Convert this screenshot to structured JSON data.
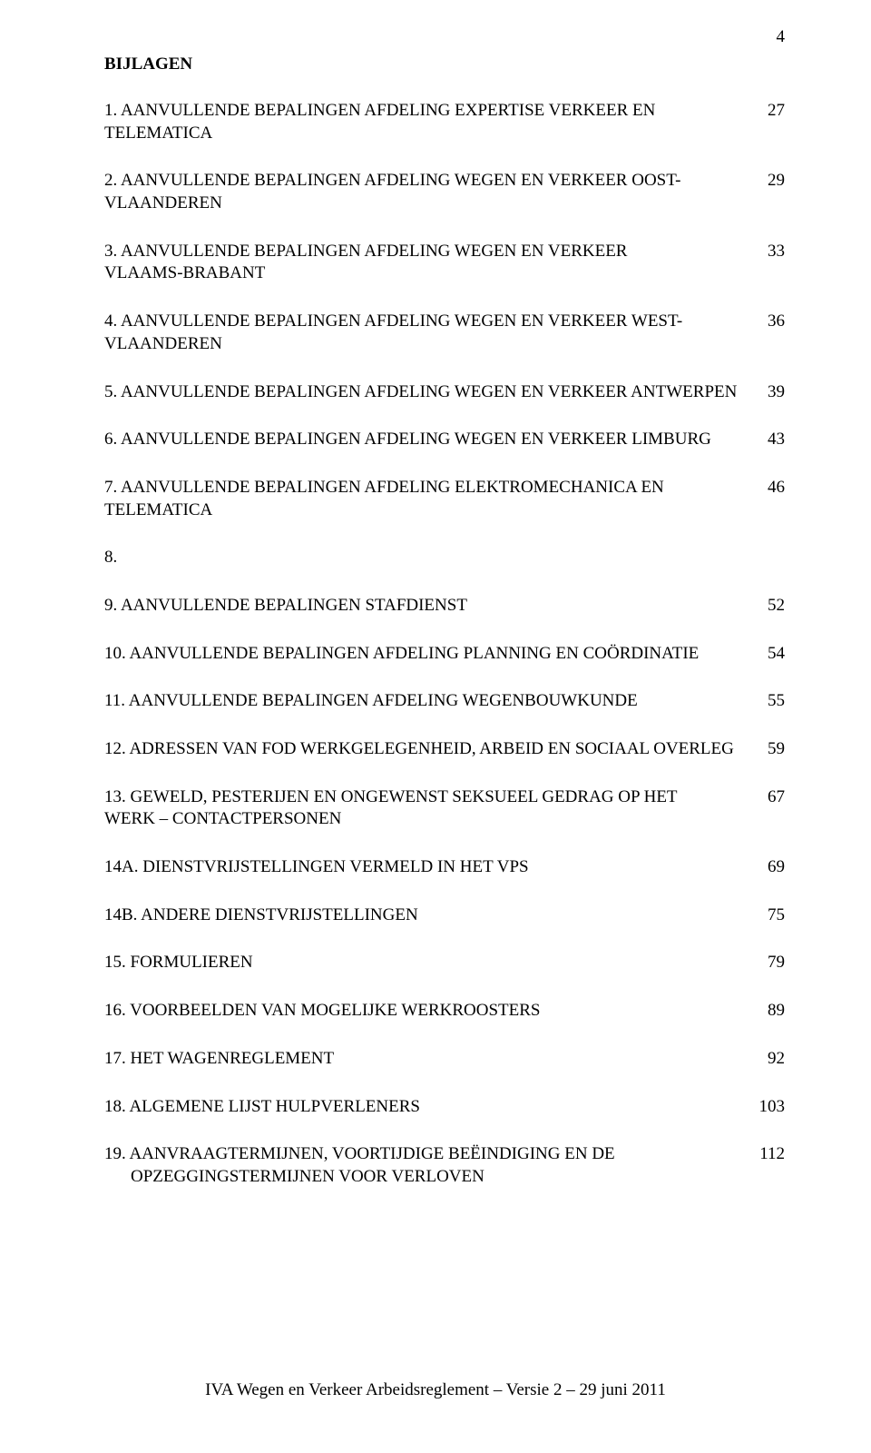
{
  "page_number_top": "4",
  "heading": "BIJLAGEN",
  "entries": [
    {
      "label": "1. AANVULLENDE BEPALINGEN AFDELING EXPERTISE VERKEER EN TELEMATICA",
      "page": "27"
    },
    {
      "label": "2. AANVULLENDE BEPALINGEN AFDELING WEGEN EN VERKEER OOST-VLAANDEREN",
      "page": "29"
    },
    {
      "label": "3. AANVULLENDE BEPALINGEN AFDELING WEGEN EN VERKEER VLAAMS-BRABANT",
      "page": "33"
    },
    {
      "label": "4. AANVULLENDE BEPALINGEN AFDELING WEGEN EN VERKEER WEST-VLAANDEREN",
      "page": "36"
    },
    {
      "label": "5. AANVULLENDE BEPALINGEN AFDELING WEGEN EN VERKEER ANTWERPEN",
      "page": "39"
    },
    {
      "label": "6. AANVULLENDE BEPALINGEN AFDELING WEGEN EN VERKEER LIMBURG",
      "page": "43"
    },
    {
      "label": "7. AANVULLENDE BEPALINGEN AFDELING ELEKTROMECHANICA EN TELEMATICA",
      "page": "46"
    },
    {
      "label": "8.",
      "page": ""
    },
    {
      "label": "9. AANVULLENDE BEPALINGEN STAFDIENST",
      "page": "52"
    },
    {
      "label": "10. AANVULLENDE BEPALINGEN AFDELING PLANNING EN COÖRDINATIE",
      "page": "54"
    },
    {
      "label": "11. AANVULLENDE BEPALINGEN AFDELING WEGENBOUWKUNDE",
      "page": "55"
    },
    {
      "label": "12. ADRESSEN VAN FOD WERKGELEGENHEID, ARBEID EN SOCIAAL OVERLEG",
      "page": "59"
    },
    {
      "label": "13. GEWELD, PESTERIJEN EN ONGEWENST SEKSUEEL GEDRAG OP HET WERK – CONTACTPERSONEN",
      "page": "67"
    },
    {
      "label": "14A. DIENSTVRIJSTELLINGEN VERMELD IN HET VPS",
      "page": "69"
    },
    {
      "label": "14B. ANDERE DIENSTVRIJSTELLINGEN",
      "page": "75"
    },
    {
      "label": "15. FORMULIEREN",
      "page": "79"
    },
    {
      "label": "16. VOORBEELDEN VAN MOGELIJKE WERKROOSTERS",
      "page": "89"
    },
    {
      "label": "17. HET WAGENREGLEMENT",
      "page": "92"
    },
    {
      "label": "18. ALGEMENE LIJST HULPVERLENERS",
      "page": "103"
    },
    {
      "label_line1": "19. AANVRAAGTERMIJNEN, VOORTIJDIGE BEËINDIGING EN DE",
      "label_line2": "OPZEGGINGSTERMIJNEN VOOR VERLOVEN",
      "page": "112"
    }
  ],
  "footer": "IVA Wegen en Verkeer Arbeidsreglement – Versie 2 – 29 juni 2011"
}
